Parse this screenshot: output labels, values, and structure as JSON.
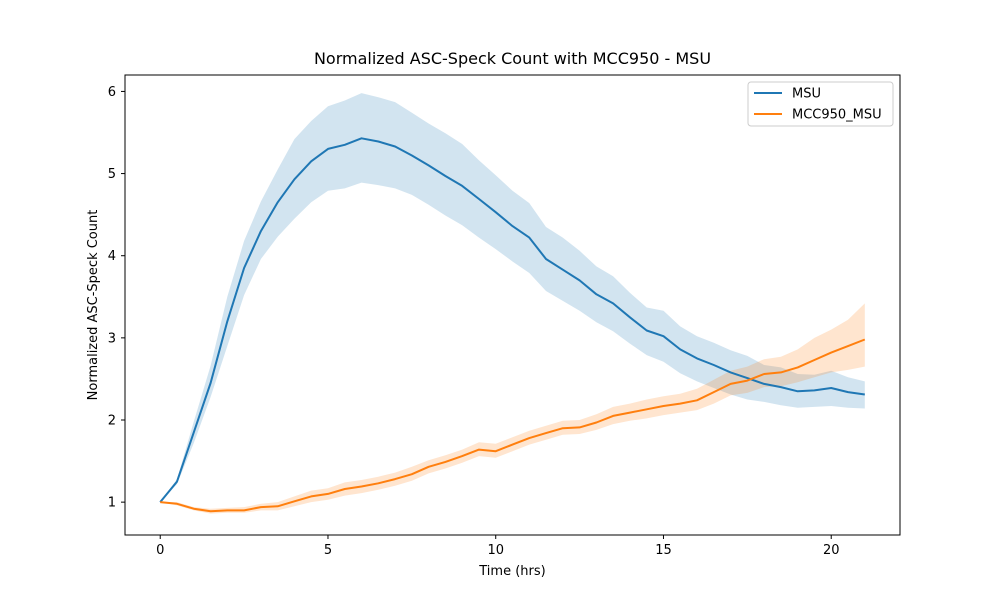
{
  "chart_data": {
    "type": "line",
    "title": "Normalized ASC-Speck Count with MCC950 - MSU",
    "xlabel": "Time (hrs)",
    "ylabel": "Normalized ASC-Speck Count",
    "xlim": [
      -1.05,
      22.05
    ],
    "ylim": [
      0.6,
      6.2
    ],
    "xticks": [
      0,
      5,
      10,
      15,
      20
    ],
    "yticks": [
      1,
      2,
      3,
      4,
      5,
      6
    ],
    "grid": false,
    "legend_position": "top-right",
    "x": [
      0,
      0.5,
      1,
      1.5,
      2,
      2.5,
      3,
      3.5,
      4,
      4.5,
      5,
      5.5,
      6,
      6.5,
      7,
      7.5,
      8,
      8.5,
      9,
      9.5,
      10,
      10.5,
      11,
      11.5,
      12,
      12.5,
      13,
      13.5,
      14,
      14.5,
      15,
      15.5,
      16,
      16.5,
      17,
      17.5,
      18,
      18.5,
      19,
      19.5,
      20,
      20.5,
      21
    ],
    "series": [
      {
        "name": "MSU",
        "color": "#1f77b4",
        "values": [
          1.0,
          1.25,
          1.85,
          2.45,
          3.2,
          3.85,
          4.3,
          4.65,
          4.93,
          5.15,
          5.3,
          5.35,
          5.43,
          5.39,
          5.33,
          5.22,
          5.1,
          4.97,
          4.85,
          4.69,
          4.53,
          4.36,
          4.22,
          3.96,
          3.83,
          3.7,
          3.53,
          3.42,
          3.25,
          3.09,
          3.02,
          2.86,
          2.75,
          2.67,
          2.58,
          2.51,
          2.44,
          2.4,
          2.35,
          2.36,
          2.39,
          2.34,
          2.31
        ],
        "lower": [
          1.0,
          1.22,
          1.72,
          2.28,
          2.9,
          3.52,
          3.96,
          4.23,
          4.45,
          4.65,
          4.79,
          4.82,
          4.89,
          4.86,
          4.82,
          4.74,
          4.62,
          4.49,
          4.37,
          4.22,
          4.08,
          3.93,
          3.79,
          3.57,
          3.45,
          3.33,
          3.19,
          3.08,
          2.93,
          2.79,
          2.71,
          2.57,
          2.47,
          2.39,
          2.31,
          2.25,
          2.22,
          2.18,
          2.15,
          2.16,
          2.17,
          2.15,
          2.14
        ],
        "upper": [
          1.0,
          1.28,
          1.98,
          2.66,
          3.5,
          4.18,
          4.66,
          5.05,
          5.42,
          5.64,
          5.82,
          5.89,
          5.98,
          5.93,
          5.87,
          5.74,
          5.61,
          5.49,
          5.36,
          5.16,
          4.98,
          4.79,
          4.64,
          4.35,
          4.22,
          4.06,
          3.87,
          3.75,
          3.55,
          3.37,
          3.33,
          3.14,
          3.02,
          2.94,
          2.85,
          2.78,
          2.67,
          2.64,
          2.56,
          2.55,
          2.6,
          2.52,
          2.47
        ]
      },
      {
        "name": "MCC950_MSU",
        "color": "#ff7f0e",
        "values": [
          1.0,
          0.98,
          0.92,
          0.89,
          0.9,
          0.9,
          0.94,
          0.95,
          1.01,
          1.07,
          1.1,
          1.16,
          1.19,
          1.23,
          1.28,
          1.34,
          1.43,
          1.49,
          1.56,
          1.64,
          1.62,
          1.7,
          1.78,
          1.84,
          1.9,
          1.91,
          1.97,
          2.05,
          2.09,
          2.13,
          2.17,
          2.2,
          2.24,
          2.34,
          2.44,
          2.48,
          2.56,
          2.58,
          2.64,
          2.73,
          2.82,
          2.9,
          2.98
        ],
        "lower": [
          1.0,
          0.96,
          0.9,
          0.86,
          0.87,
          0.87,
          0.9,
          0.9,
          0.95,
          1.0,
          1.03,
          1.08,
          1.11,
          1.15,
          1.2,
          1.26,
          1.35,
          1.41,
          1.48,
          1.56,
          1.54,
          1.62,
          1.7,
          1.76,
          1.82,
          1.83,
          1.88,
          1.95,
          1.99,
          2.02,
          2.06,
          2.09,
          2.12,
          2.2,
          2.3,
          2.33,
          2.4,
          2.41,
          2.46,
          2.52,
          2.58,
          2.61,
          2.65
        ],
        "upper": [
          1.0,
          1.0,
          0.94,
          0.92,
          0.93,
          0.94,
          0.98,
          1.0,
          1.07,
          1.14,
          1.17,
          1.24,
          1.27,
          1.31,
          1.36,
          1.43,
          1.51,
          1.57,
          1.64,
          1.73,
          1.71,
          1.79,
          1.87,
          1.93,
          1.99,
          2.0,
          2.07,
          2.16,
          2.2,
          2.25,
          2.29,
          2.32,
          2.38,
          2.49,
          2.6,
          2.65,
          2.74,
          2.77,
          2.86,
          3.0,
          3.1,
          3.22,
          3.42
        ]
      }
    ]
  }
}
